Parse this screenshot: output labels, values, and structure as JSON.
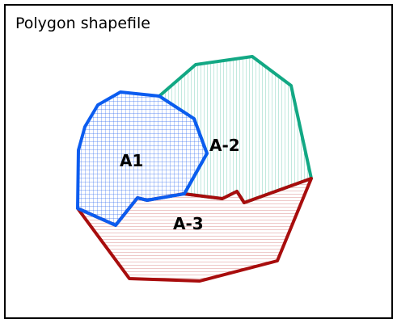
{
  "title": "Polygon shapefile",
  "polygons": [
    {
      "id": "A1",
      "label": "A1",
      "stroke": "#0b5cf0",
      "fill_pattern": "crosshatch"
    },
    {
      "id": "A-2",
      "label": "A-2",
      "stroke": "#12a884",
      "fill_pattern": "vertical"
    },
    {
      "id": "A-3",
      "label": "A-3",
      "stroke": "#a80d0d",
      "fill_pattern": "horizontal"
    }
  ]
}
